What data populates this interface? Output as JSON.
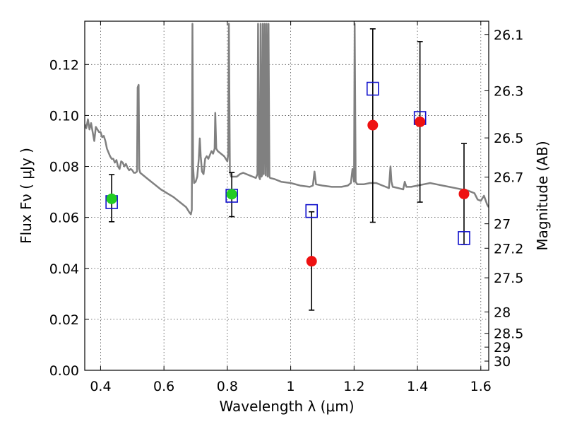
{
  "chart_data": {
    "type": "scatter",
    "xlabel": "Wavelength  λ (μm)",
    "ylabel": "Flux  Fν  ( μJy )",
    "ylabel_right": "Magnitude (AB)",
    "xlim": [
      0.35,
      1.625
    ],
    "ylim": [
      0.0,
      0.137
    ],
    "grid": true,
    "x_ticks": [
      0.4,
      0.6,
      0.8,
      1.0,
      1.2,
      1.4,
      1.6
    ],
    "x_tick_labels": [
      "0.4",
      "0.6",
      "0.8",
      "1",
      "1.2",
      "1.4",
      "1.6"
    ],
    "y_ticks": [
      0.0,
      0.02,
      0.04,
      0.06,
      0.08,
      0.1,
      0.12
    ],
    "y_tick_labels": [
      "0.00",
      "0.02",
      "0.04",
      "0.06",
      "0.08",
      "0.10",
      "0.12"
    ],
    "right_ticks": [
      {
        "flux": 0.1318,
        "label": "26.1"
      },
      {
        "flux": 0.1097,
        "label": "26.3"
      },
      {
        "flux": 0.0912,
        "label": "26.5"
      },
      {
        "flux": 0.0758,
        "label": "26.7"
      },
      {
        "flux": 0.0575,
        "label": "27"
      },
      {
        "flux": 0.0479,
        "label": "27.2"
      },
      {
        "flux": 0.0363,
        "label": "27.5"
      },
      {
        "flux": 0.0229,
        "label": "28"
      },
      {
        "flux": 0.0145,
        "label": "28.5"
      },
      {
        "flux": 0.0091,
        "label": "29"
      },
      {
        "flux": 0.0036,
        "label": "30"
      }
    ],
    "colors": {
      "model": "#808080",
      "green": "#22cc22",
      "red": "#ee1111",
      "blue_square": "#1111cc",
      "errorbar": "#000000"
    },
    "series": [
      {
        "marker": "circle-green",
        "points": [
          {
            "x": 0.435,
            "y": 0.0673,
            "yerr_low": 0.0583,
            "yerr_high": 0.0768
          },
          {
            "x": 0.814,
            "y": 0.0691,
            "yerr_low": 0.0603,
            "yerr_high": 0.0776
          }
        ]
      },
      {
        "marker": "circle-red",
        "points": [
          {
            "x": 1.066,
            "y": 0.0428,
            "yerr_low": 0.0236,
            "yerr_high": 0.0622
          },
          {
            "x": 1.259,
            "y": 0.0962,
            "yerr_low": 0.0581,
            "yerr_high": 0.134
          },
          {
            "x": 1.408,
            "y": 0.0975,
            "yerr_low": 0.066,
            "yerr_high": 0.129
          },
          {
            "x": 1.547,
            "y": 0.0692,
            "yerr_low": 0.0494,
            "yerr_high": 0.089
          }
        ]
      },
      {
        "marker": "square-blue",
        "points": [
          {
            "x": 0.435,
            "y": 0.066
          },
          {
            "x": 0.814,
            "y": 0.0685
          },
          {
            "x": 1.066,
            "y": 0.0625
          },
          {
            "x": 1.259,
            "y": 0.1105
          },
          {
            "x": 1.408,
            "y": 0.099
          },
          {
            "x": 1.547,
            "y": 0.0519
          }
        ]
      }
    ],
    "model_spectrum": [
      [
        0.35,
        0.0965
      ],
      [
        0.355,
        0.095
      ],
      [
        0.36,
        0.0985
      ],
      [
        0.365,
        0.0945
      ],
      [
        0.37,
        0.097
      ],
      [
        0.375,
        0.0935
      ],
      [
        0.38,
        0.09
      ],
      [
        0.385,
        0.0955
      ],
      [
        0.39,
        0.0945
      ],
      [
        0.395,
        0.0935
      ],
      [
        0.4,
        0.0935
      ],
      [
        0.405,
        0.0915
      ],
      [
        0.41,
        0.092
      ],
      [
        0.415,
        0.09
      ],
      [
        0.42,
        0.087
      ],
      [
        0.425,
        0.0855
      ],
      [
        0.43,
        0.084
      ],
      [
        0.435,
        0.083
      ],
      [
        0.44,
        0.083
      ],
      [
        0.445,
        0.0815
      ],
      [
        0.45,
        0.0825
      ],
      [
        0.455,
        0.08
      ],
      [
        0.46,
        0.079
      ],
      [
        0.465,
        0.082
      ],
      [
        0.47,
        0.0815
      ],
      [
        0.475,
        0.08
      ],
      [
        0.48,
        0.081
      ],
      [
        0.485,
        0.0795
      ],
      [
        0.49,
        0.0785
      ],
      [
        0.495,
        0.079
      ],
      [
        0.5,
        0.0785
      ],
      [
        0.505,
        0.0775
      ],
      [
        0.51,
        0.0775
      ],
      [
        0.515,
        0.078
      ],
      [
        0.517,
        0.111
      ],
      [
        0.52,
        0.112
      ],
      [
        0.522,
        0.079
      ],
      [
        0.525,
        0.0775
      ],
      [
        0.53,
        0.077
      ],
      [
        0.55,
        0.075
      ],
      [
        0.57,
        0.073
      ],
      [
        0.59,
        0.071
      ],
      [
        0.61,
        0.0695
      ],
      [
        0.63,
        0.068
      ],
      [
        0.65,
        0.066
      ],
      [
        0.67,
        0.064
      ],
      [
        0.68,
        0.062
      ],
      [
        0.685,
        0.0612
      ],
      [
        0.688,
        0.063
      ],
      [
        0.69,
        0.136
      ],
      [
        0.692,
        0.08
      ],
      [
        0.695,
        0.0735
      ],
      [
        0.7,
        0.074
      ],
      [
        0.705,
        0.076
      ],
      [
        0.71,
        0.083
      ],
      [
        0.713,
        0.091
      ],
      [
        0.716,
        0.084
      ],
      [
        0.72,
        0.078
      ],
      [
        0.725,
        0.077
      ],
      [
        0.73,
        0.083
      ],
      [
        0.735,
        0.084
      ],
      [
        0.74,
        0.083
      ],
      [
        0.745,
        0.0845
      ],
      [
        0.75,
        0.086
      ],
      [
        0.755,
        0.085
      ],
      [
        0.76,
        0.087
      ],
      [
        0.762,
        0.101
      ],
      [
        0.765,
        0.087
      ],
      [
        0.77,
        0.086
      ],
      [
        0.78,
        0.085
      ],
      [
        0.79,
        0.084
      ],
      [
        0.8,
        0.082
      ],
      [
        0.803,
        0.085
      ],
      [
        0.805,
        0.136
      ],
      [
        0.808,
        0.078
      ],
      [
        0.812,
        0.076
      ],
      [
        0.82,
        0.076
      ],
      [
        0.83,
        0.076
      ],
      [
        0.84,
        0.077
      ],
      [
        0.85,
        0.0775
      ],
      [
        0.86,
        0.077
      ],
      [
        0.87,
        0.0765
      ],
      [
        0.88,
        0.076
      ],
      [
        0.89,
        0.0755
      ],
      [
        0.895,
        0.077
      ],
      [
        0.897,
        0.136
      ],
      [
        0.9,
        0.076
      ],
      [
        0.903,
        0.075
      ],
      [
        0.905,
        0.136
      ],
      [
        0.908,
        0.076
      ],
      [
        0.91,
        0.0765
      ],
      [
        0.912,
        0.136
      ],
      [
        0.915,
        0.077
      ],
      [
        0.918,
        0.136
      ],
      [
        0.921,
        0.0765
      ],
      [
        0.924,
        0.136
      ],
      [
        0.927,
        0.076
      ],
      [
        0.93,
        0.136
      ],
      [
        0.933,
        0.076
      ],
      [
        0.935,
        0.0755
      ],
      [
        0.95,
        0.075
      ],
      [
        0.97,
        0.074
      ],
      [
        1.0,
        0.0735
      ],
      [
        1.03,
        0.0725
      ],
      [
        1.06,
        0.072
      ],
      [
        1.07,
        0.0725
      ],
      [
        1.075,
        0.078
      ],
      [
        1.08,
        0.073
      ],
      [
        1.1,
        0.0725
      ],
      [
        1.13,
        0.072
      ],
      [
        1.16,
        0.072
      ],
      [
        1.18,
        0.0725
      ],
      [
        1.19,
        0.0735
      ],
      [
        1.195,
        0.079
      ],
      [
        1.2,
        0.074
      ],
      [
        1.202,
        0.136
      ],
      [
        1.205,
        0.074
      ],
      [
        1.21,
        0.073
      ],
      [
        1.23,
        0.073
      ],
      [
        1.25,
        0.0735
      ],
      [
        1.27,
        0.0735
      ],
      [
        1.28,
        0.073
      ],
      [
        1.29,
        0.0725
      ],
      [
        1.3,
        0.072
      ],
      [
        1.31,
        0.0715
      ],
      [
        1.315,
        0.08
      ],
      [
        1.318,
        0.074
      ],
      [
        1.322,
        0.072
      ],
      [
        1.34,
        0.0715
      ],
      [
        1.355,
        0.071
      ],
      [
        1.36,
        0.074
      ],
      [
        1.365,
        0.072
      ],
      [
        1.38,
        0.072
      ],
      [
        1.4,
        0.0725
      ],
      [
        1.42,
        0.073
      ],
      [
        1.44,
        0.0735
      ],
      [
        1.46,
        0.073
      ],
      [
        1.48,
        0.0725
      ],
      [
        1.5,
        0.072
      ],
      [
        1.52,
        0.0715
      ],
      [
        1.54,
        0.071
      ],
      [
        1.56,
        0.0705
      ],
      [
        1.58,
        0.0695
      ],
      [
        1.59,
        0.067
      ],
      [
        1.6,
        0.0665
      ],
      [
        1.61,
        0.0685
      ],
      [
        1.62,
        0.065
      ],
      [
        1.625,
        0.064
      ]
    ]
  }
}
